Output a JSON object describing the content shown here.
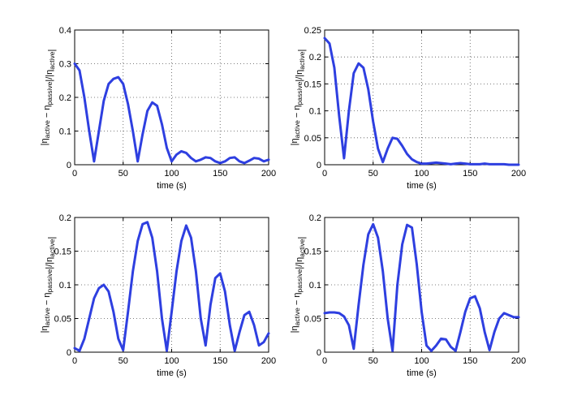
{
  "colors": {
    "line": "#2e3fe0",
    "axis": "#000000",
    "grid": "#555555"
  },
  "ylabel_parts": {
    "open": "|η",
    "active": "active",
    "minus": " − η",
    "passive": "passive",
    "divide": "|/|η",
    "active2": "active",
    "close": "|"
  },
  "chart_data": [
    {
      "type": "line",
      "xlabel": "time (s)",
      "xlim": [
        0,
        200
      ],
      "ylim": [
        0,
        0.4
      ],
      "xticks": [
        "0",
        "50",
        "100",
        "150",
        "200"
      ],
      "yticks": [
        "0",
        "0.1",
        "0.2",
        "0.3",
        "0.4"
      ],
      "grid": true,
      "series": [
        {
          "x": [
            0,
            5,
            10,
            15,
            20,
            25,
            30,
            35,
            40,
            45,
            50,
            55,
            60,
            65,
            70,
            75,
            80,
            85,
            90,
            95,
            100,
            105,
            110,
            115,
            120,
            125,
            130,
            135,
            140,
            145,
            150,
            155,
            160,
            165,
            170,
            175,
            180,
            185,
            190,
            195,
            200
          ],
          "y": [
            0.3,
            0.28,
            0.2,
            0.1,
            0.01,
            0.1,
            0.19,
            0.24,
            0.255,
            0.26,
            0.24,
            0.18,
            0.1,
            0.01,
            0.09,
            0.16,
            0.185,
            0.175,
            0.12,
            0.05,
            0.01,
            0.03,
            0.04,
            0.035,
            0.02,
            0.01,
            0.015,
            0.022,
            0.02,
            0.01,
            0.005,
            0.01,
            0.02,
            0.022,
            0.01,
            0.005,
            0.012,
            0.02,
            0.018,
            0.01,
            0.015
          ]
        }
      ]
    },
    {
      "type": "line",
      "xlabel": "time (s)",
      "xlim": [
        0,
        200
      ],
      "ylim": [
        0,
        0.25
      ],
      "xticks": [
        "0",
        "50",
        "100",
        "150",
        "200"
      ],
      "yticks": [
        "0",
        "0.05",
        "0.1",
        "0.15",
        "0.2",
        "0.25"
      ],
      "grid": true,
      "series": [
        {
          "x": [
            0,
            5,
            10,
            15,
            20,
            25,
            30,
            35,
            40,
            45,
            50,
            55,
            60,
            65,
            70,
            75,
            80,
            85,
            90,
            95,
            100,
            105,
            110,
            115,
            120,
            125,
            130,
            135,
            140,
            145,
            150,
            155,
            160,
            165,
            170,
            175,
            180,
            185,
            190,
            195,
            200
          ],
          "y": [
            0.235,
            0.225,
            0.18,
            0.09,
            0.012,
            0.1,
            0.17,
            0.188,
            0.18,
            0.14,
            0.08,
            0.03,
            0.005,
            0.03,
            0.05,
            0.048,
            0.035,
            0.02,
            0.01,
            0.005,
            0.002,
            0.002,
            0.003,
            0.004,
            0.003,
            0.002,
            0.001,
            0.002,
            0.003,
            0.002,
            0.001,
            0.001,
            0.001,
            0.002,
            0.001,
            0.001,
            0.001,
            0.001,
            0.0,
            0.0,
            0.0
          ]
        }
      ]
    },
    {
      "type": "line",
      "xlabel": "time (s)",
      "xlim": [
        0,
        200
      ],
      "ylim": [
        0,
        0.2
      ],
      "xticks": [
        "0",
        "50",
        "100",
        "150",
        "200"
      ],
      "yticks": [
        "0",
        "0.05",
        "0.1",
        "0.15",
        "0.2"
      ],
      "grid": true,
      "series": [
        {
          "x": [
            0,
            5,
            10,
            15,
            20,
            25,
            30,
            35,
            40,
            45,
            50,
            55,
            60,
            65,
            70,
            75,
            80,
            85,
            90,
            95,
            100,
            105,
            110,
            115,
            120,
            125,
            130,
            135,
            140,
            145,
            150,
            155,
            160,
            165,
            170,
            175,
            180,
            185,
            190,
            195,
            200
          ],
          "y": [
            0.006,
            0.002,
            0.02,
            0.05,
            0.08,
            0.095,
            0.1,
            0.09,
            0.06,
            0.02,
            0.003,
            0.06,
            0.12,
            0.165,
            0.19,
            0.193,
            0.17,
            0.12,
            0.05,
            0.002,
            0.06,
            0.12,
            0.165,
            0.188,
            0.17,
            0.12,
            0.05,
            0.01,
            0.07,
            0.11,
            0.117,
            0.09,
            0.04,
            0.002,
            0.03,
            0.055,
            0.06,
            0.04,
            0.01,
            0.015,
            0.028
          ]
        }
      ]
    },
    {
      "type": "line",
      "xlabel": "time (s)",
      "xlim": [
        0,
        200
      ],
      "ylim": [
        0,
        0.2
      ],
      "xticks": [
        "0",
        "50",
        "100",
        "150",
        "200"
      ],
      "yticks": [
        "0",
        "0.05",
        "0.1",
        "0.15",
        "0.2"
      ],
      "grid": true,
      "series": [
        {
          "x": [
            0,
            5,
            10,
            15,
            20,
            25,
            30,
            35,
            40,
            45,
            50,
            55,
            60,
            65,
            70,
            75,
            80,
            85,
            90,
            95,
            100,
            105,
            110,
            115,
            120,
            125,
            130,
            135,
            140,
            145,
            150,
            155,
            160,
            165,
            170,
            175,
            180,
            185,
            190,
            195,
            200
          ],
          "y": [
            0.058,
            0.059,
            0.059,
            0.058,
            0.053,
            0.04,
            0.005,
            0.07,
            0.13,
            0.175,
            0.19,
            0.17,
            0.12,
            0.05,
            0.002,
            0.1,
            0.16,
            0.189,
            0.185,
            0.13,
            0.06,
            0.01,
            0.002,
            0.01,
            0.02,
            0.019,
            0.008,
            0.002,
            0.03,
            0.06,
            0.08,
            0.083,
            0.065,
            0.03,
            0.003,
            0.03,
            0.05,
            0.058,
            0.055,
            0.052,
            0.052
          ]
        }
      ]
    }
  ]
}
